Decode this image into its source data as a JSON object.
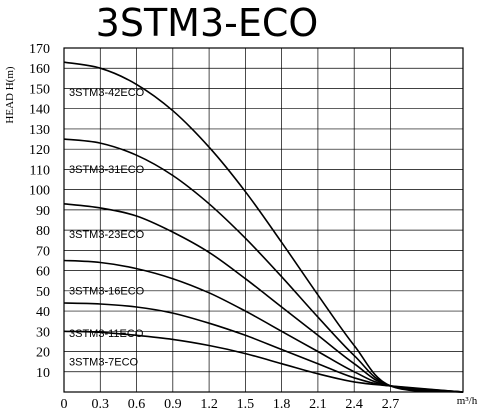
{
  "chart_data": {
    "type": "line",
    "title": "3STM3-ECO",
    "xlabel": "m³/h",
    "ylabel": "HEAD H(m)",
    "xlim": [
      0,
      3.3
    ],
    "ylim": [
      0,
      170
    ],
    "xticks": [
      0,
      0.3,
      0.6,
      0.9,
      1.2,
      1.5,
      1.8,
      2.1,
      2.4,
      2.7
    ],
    "xtick_labels": [
      "0",
      "0.3",
      "0.6",
      "0.9",
      "1.2",
      "1.5",
      "1.8",
      "2.1",
      "2.4",
      "2.7"
    ],
    "yticks": [
      10,
      20,
      30,
      40,
      50,
      60,
      70,
      80,
      90,
      100,
      110,
      120,
      130,
      140,
      150,
      160,
      170
    ],
    "grid": true,
    "x": [
      0,
      0.3,
      0.6,
      0.9,
      1.2,
      1.5,
      1.8,
      2.1,
      2.4,
      2.7,
      3.3
    ],
    "series": [
      {
        "name": "3STM3-42ECO",
        "values": [
          163,
          160,
          152,
          139,
          121,
          99,
          74,
          48,
          23,
          3,
          0
        ]
      },
      {
        "name": "3STM3-31ECO",
        "values": [
          125,
          123,
          117,
          107,
          93,
          76,
          57,
          37,
          18,
          3,
          0
        ]
      },
      {
        "name": "3STM3-23ECO",
        "values": [
          93,
          91,
          87,
          79,
          69,
          56,
          42,
          28,
          14,
          3,
          0
        ]
      },
      {
        "name": "3STM3-16ECO",
        "values": [
          65,
          64,
          61,
          56,
          49,
          40,
          30,
          20,
          10,
          3,
          0
        ]
      },
      {
        "name": "3STM3-11ECO",
        "values": [
          44,
          43.5,
          42,
          39,
          34,
          28,
          21,
          14,
          7,
          3,
          0
        ]
      },
      {
        "name": "3STM3-7ECO",
        "values": [
          30,
          29.5,
          28,
          26,
          23,
          19,
          14,
          9,
          5,
          3,
          0
        ]
      }
    ]
  }
}
